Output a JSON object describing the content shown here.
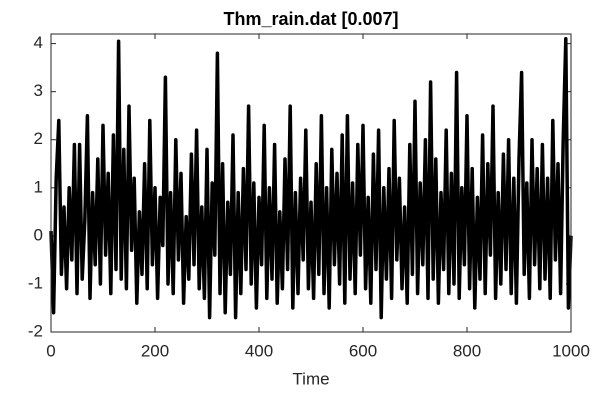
{
  "chart_data": {
    "type": "line",
    "title": "Thm_rain.dat [0.007]",
    "x_label": "Time",
    "xlim": [
      0,
      1000
    ],
    "ylim": [
      -2,
      4.2
    ],
    "xticks": [
      0,
      200,
      400,
      600,
      800,
      1000
    ],
    "yticks": [
      -2,
      -1,
      0,
      1,
      2,
      3,
      4
    ],
    "grid": false,
    "color": "#000000",
    "x": [
      0,
      5,
      10,
      15,
      20,
      25,
      30,
      35,
      40,
      45,
      50,
      55,
      60,
      65,
      70,
      75,
      80,
      85,
      90,
      95,
      100,
      105,
      110,
      115,
      120,
      125,
      130,
      135,
      140,
      145,
      150,
      155,
      160,
      165,
      170,
      175,
      180,
      185,
      190,
      195,
      200,
      205,
      210,
      215,
      220,
      225,
      230,
      235,
      240,
      245,
      250,
      255,
      260,
      265,
      270,
      275,
      280,
      285,
      290,
      295,
      300,
      305,
      310,
      315,
      320,
      325,
      330,
      335,
      340,
      345,
      350,
      355,
      360,
      365,
      370,
      375,
      380,
      385,
      390,
      395,
      400,
      405,
      410,
      415,
      420,
      425,
      430,
      435,
      440,
      445,
      450,
      455,
      460,
      465,
      470,
      475,
      480,
      485,
      490,
      495,
      500,
      505,
      510,
      515,
      520,
      525,
      530,
      535,
      540,
      545,
      550,
      555,
      560,
      565,
      570,
      575,
      580,
      585,
      590,
      595,
      600,
      605,
      610,
      615,
      620,
      625,
      630,
      635,
      640,
      645,
      650,
      655,
      660,
      665,
      670,
      675,
      680,
      685,
      690,
      695,
      700,
      705,
      710,
      715,
      720,
      725,
      730,
      735,
      740,
      745,
      750,
      755,
      760,
      765,
      770,
      775,
      780,
      785,
      790,
      795,
      800,
      805,
      810,
      815,
      820,
      825,
      830,
      835,
      840,
      845,
      850,
      855,
      860,
      865,
      870,
      875,
      880,
      885,
      890,
      895,
      900,
      905,
      910,
      915,
      920,
      925,
      930,
      935,
      940,
      945,
      950,
      955,
      960,
      965,
      970,
      975,
      980,
      985,
      990,
      995,
      1000
    ],
    "values": [
      0.1,
      -1.6,
      1.2,
      2.4,
      -0.8,
      0.6,
      -1.1,
      1.0,
      -0.5,
      1.9,
      -1.2,
      1.9,
      -0.9,
      0.3,
      2.5,
      -1.3,
      0.9,
      -0.6,
      1.6,
      -1.0,
      2.3,
      -0.4,
      1.3,
      -1.2,
      2.1,
      -0.7,
      4.05,
      -0.9,
      1.8,
      -1.1,
      2.7,
      -0.3,
      1.2,
      -1.4,
      0.5,
      -0.8,
      1.5,
      -1.1,
      2.4,
      -0.6,
      1.0,
      -1.3,
      0.8,
      -0.2,
      3.3,
      -1.0,
      0.9,
      -1.2,
      2.0,
      -0.5,
      1.3,
      -1.4,
      0.4,
      -0.9,
      1.7,
      -0.6,
      2.2,
      -1.1,
      0.6,
      -1.3,
      1.8,
      -1.7,
      1.1,
      -0.4,
      3.8,
      -1.2,
      1.5,
      -1.6,
      0.7,
      -0.8,
      2.1,
      -1.7,
      0.9,
      -1.2,
      1.4,
      -0.7,
      2.7,
      -1.0,
      1.1,
      -1.5,
      0.8,
      -0.6,
      2.3,
      -1.3,
      1.0,
      -0.9,
      1.9,
      -1.4,
      0.5,
      -1.1,
      1.6,
      -0.7,
      2.7,
      -1.5,
      0.9,
      -1.2,
      1.2,
      -0.5,
      2.2,
      -1.1,
      0.7,
      -1.3,
      1.5,
      -0.8,
      2.5,
      -1.2,
      1.0,
      -1.5,
      1.8,
      -0.6,
      1.3,
      -1.0,
      2.1,
      -1.4,
      2.5,
      -0.9,
      1.1,
      -1.2,
      1.9,
      -0.4,
      2.3,
      -1.1,
      0.8,
      -1.4,
      1.7,
      -0.7,
      2.2,
      -1.7,
      1.0,
      -0.9,
      1.4,
      -1.3,
      2.4,
      -0.5,
      1.2,
      -1.1,
      0.6,
      -1.4,
      1.9,
      -0.8,
      2.8,
      -1.2,
      1.1,
      -0.6,
      2.0,
      -1.3,
      3.2,
      -0.9,
      1.6,
      -1.4,
      0.9,
      -0.7,
      2.2,
      -1.2,
      1.3,
      -1.0,
      3.4,
      -1.3,
      1.0,
      -0.6,
      2.5,
      -1.1,
      1.4,
      -1.5,
      0.8,
      -0.9,
      2.1,
      -1.2,
      1.5,
      -0.4,
      2.7,
      -1.3,
      0.9,
      -1.0,
      1.7,
      -0.7,
      2.0,
      -1.2,
      1.2,
      -1.4,
      1.6,
      3.4,
      -0.8,
      1.1,
      -1.3,
      2.0,
      -0.6,
      1.4,
      -1.1,
      1.9,
      -0.9,
      1.2,
      -1.3,
      2.4,
      -0.5,
      1.5,
      -1.2,
      2.0,
      4.1,
      -1.5,
      0.0
    ]
  }
}
